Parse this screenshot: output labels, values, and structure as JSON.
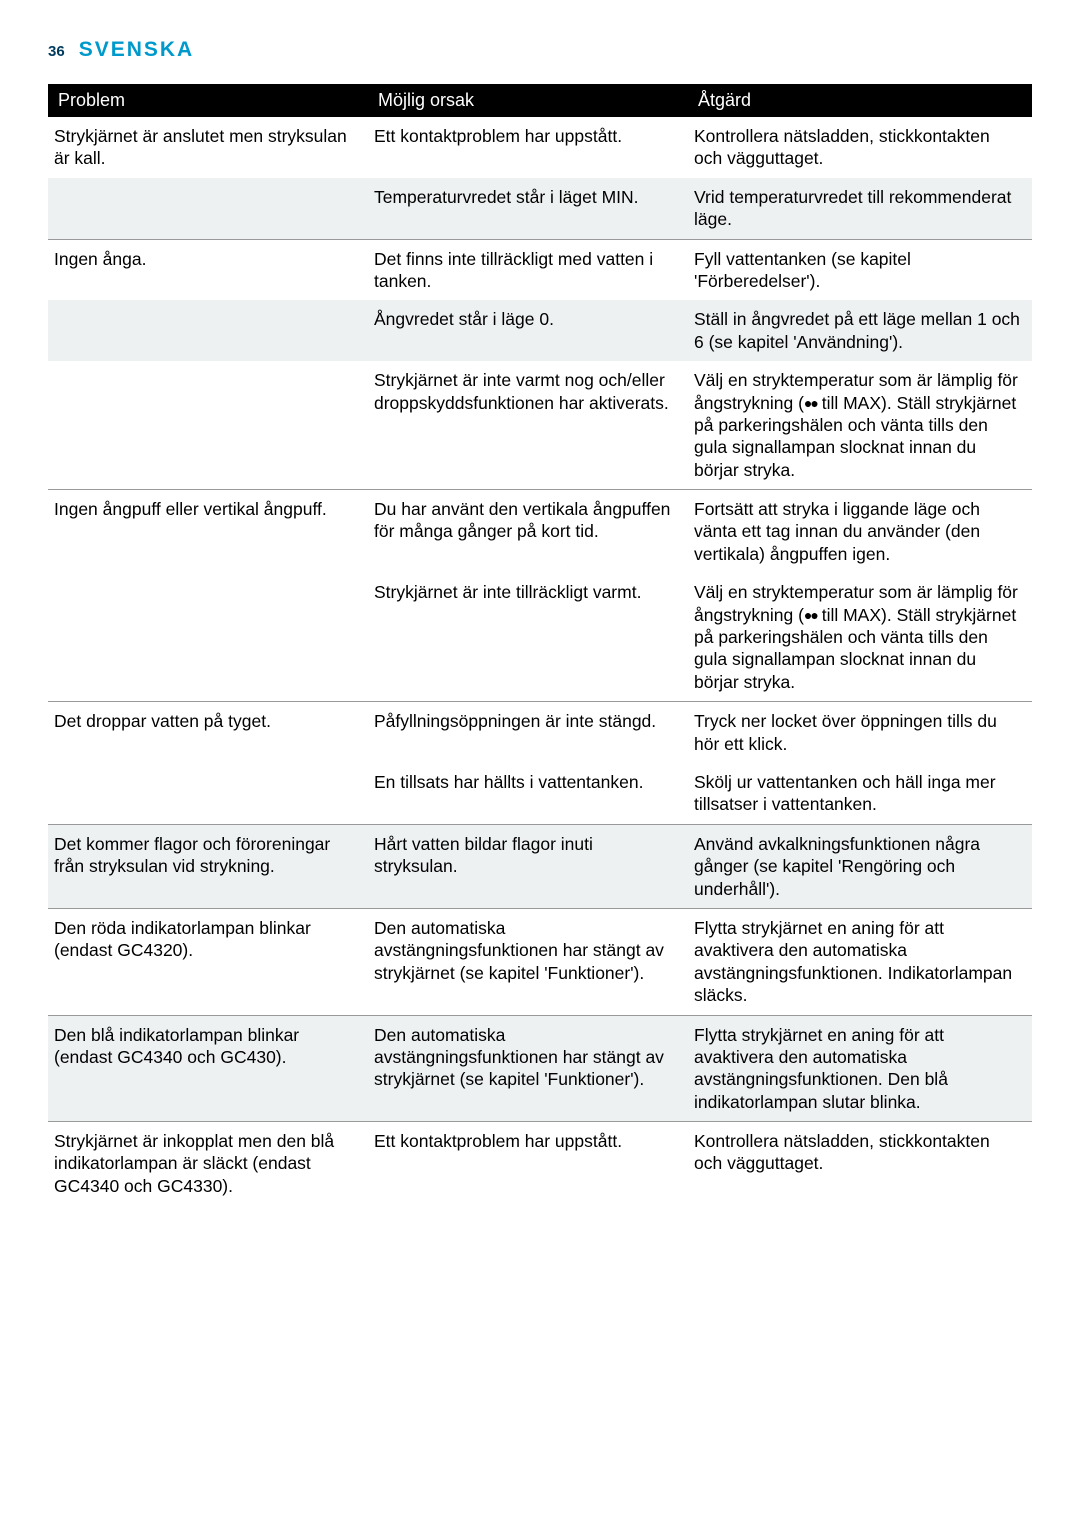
{
  "header": {
    "page_number": "36",
    "language": "SVENSKA"
  },
  "table": {
    "columns": [
      "Problem",
      "Möjlig orsak",
      "Åtgärd"
    ],
    "rows": [
      {
        "alt": false,
        "sep": false,
        "cells": [
          "Strykjärnet är anslutet men stryksulan är kall.",
          "Ett kontaktproblem har uppstått.",
          "Kontrollera nätsladden, stickkontakten och vägguttaget."
        ]
      },
      {
        "alt": true,
        "sep": true,
        "cells": [
          "",
          "Temperaturvredet står i läget MIN.",
          "Vrid temperaturvredet till rekommenderat läge."
        ]
      },
      {
        "alt": false,
        "sep": false,
        "cells": [
          "Ingen ånga.",
          "Det finns inte tillräckligt med vatten i tanken.",
          "Fyll vattentanken (se kapitel 'Förberedelser')."
        ]
      },
      {
        "alt": true,
        "sep": false,
        "cells": [
          "",
          "Ångvredet står i läge 0.",
          "Ställ in ångvredet på ett läge mellan 1 och 6 (se kapitel 'Användning')."
        ]
      },
      {
        "alt": false,
        "sep": true,
        "cells": [
          "",
          "Strykjärnet är inte varmt nog och/eller droppskyddsfunktionen har aktiverats.",
          "Välj en stryktemperatur som är lämplig för ångstrykning (●● till MAX). Ställ strykjärnet på parkeringshälen och vänta tills den gula signallampan slocknat innan du börjar stryka."
        ]
      },
      {
        "alt": false,
        "sep": false,
        "cells": [
          "Ingen ångpuff eller vertikal ångpuff.",
          "Du har använt den vertikala ångpuffen för många gånger på kort tid.",
          "Fortsätt att stryka i liggande läge och vänta ett tag innan du använder (den vertikala) ångpuffen igen."
        ]
      },
      {
        "alt": false,
        "sep": true,
        "cells": [
          "",
          "Strykjärnet är inte tillräckligt varmt.",
          "Välj en stryktemperatur som är lämplig för ångstrykning (●● till MAX). Ställ strykjärnet på parkeringshälen och vänta tills den gula signallampan slocknat innan du börjar stryka."
        ]
      },
      {
        "alt": false,
        "sep": false,
        "cells": [
          "Det droppar vatten på tyget.",
          "Påfyllningsöppningen är inte stängd.",
          "Tryck ner locket över öppningen tills du hör ett klick."
        ]
      },
      {
        "alt": false,
        "sep": true,
        "cells": [
          "",
          "En tillsats har hällts i vattentanken.",
          "Skölj ur vattentanken och häll inga mer tillsatser i vattentanken."
        ]
      },
      {
        "alt": true,
        "sep": true,
        "cells": [
          "Det kommer flagor och föroreningar från stryksulan vid strykning.",
          "Hårt vatten bildar flagor inuti stryksulan.",
          "Använd avkalkningsfunktionen några gånger (se kapitel 'Rengöring och underhåll')."
        ]
      },
      {
        "alt": false,
        "sep": true,
        "cells": [
          "Den röda indikatorlampan blinkar (endast GC4320).",
          "Den automatiska avstängningsfunktionen har stängt av strykjärnet (se kapitel 'Funktioner').",
          "Flytta strykjärnet en aning för att avaktivera den automatiska avstängningsfunktionen. Indikatorlampan släcks."
        ]
      },
      {
        "alt": true,
        "sep": true,
        "cells": [
          "Den blå indikatorlampan blinkar (endast GC4340 och GC430).",
          "Den automatiska avstängningsfunktionen har stängt av strykjärnet (se kapitel 'Funktioner').",
          "Flytta strykjärnet en aning för att avaktivera den automatiska avstängningsfunktionen. Den blå indikatorlampan slutar blinka."
        ]
      },
      {
        "alt": false,
        "sep": false,
        "cells": [
          "Strykjärnet är inkopplat men den blå indikatorlampan är släckt (endast GC4340 och GC4330).",
          "Ett kontaktproblem har uppstått.",
          "Kontrollera nätsladden, stickkontakten och vägguttaget."
        ]
      }
    ]
  }
}
